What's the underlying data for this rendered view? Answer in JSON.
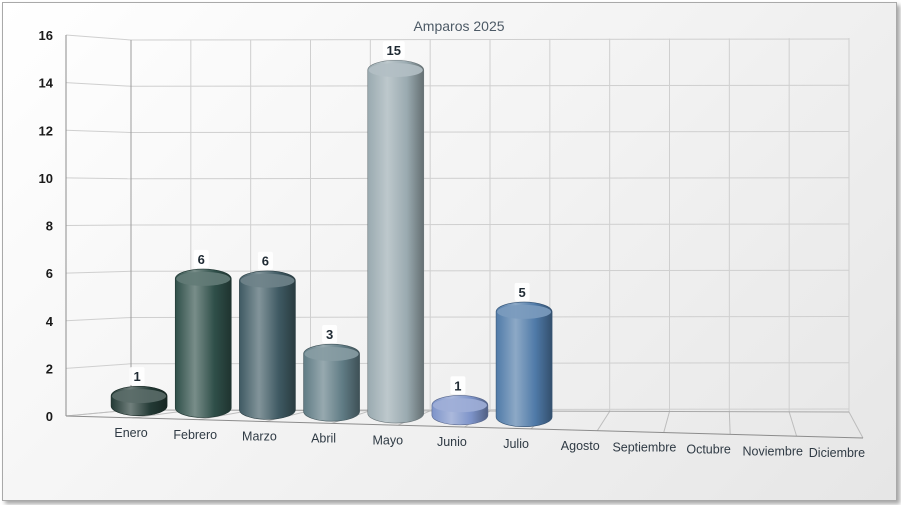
{
  "chart_data": {
    "type": "bar",
    "title": "Amparos 2025",
    "categories": [
      "Enero",
      "Febrero",
      "Marzo",
      "Abril",
      "Mayo",
      "Junio",
      "Julio",
      "Agosto",
      "Septiembre",
      "Octubre",
      "Noviembre",
      "Diciembre"
    ],
    "values": [
      1,
      6,
      6,
      3,
      15,
      1,
      5,
      null,
      null,
      null,
      null,
      null
    ],
    "data_labels": [
      "1",
      "6",
      "6",
      "3",
      "15",
      "1",
      "5",
      "",
      "",
      "",
      "",
      ""
    ],
    "xlabel": "",
    "ylabel": "",
    "ylim": [
      0,
      16
    ],
    "yticks": [
      0,
      2,
      4,
      6,
      8,
      10,
      12,
      14,
      16
    ],
    "grid": true,
    "legend": "none",
    "bar_colors": [
      "#233a35",
      "#2f4f49",
      "#3f5a63",
      "#5f7b84",
      "#9aaab0",
      "#7d93c9",
      "#4f7aa8",
      "",
      "",
      "",
      "",
      ""
    ]
  }
}
